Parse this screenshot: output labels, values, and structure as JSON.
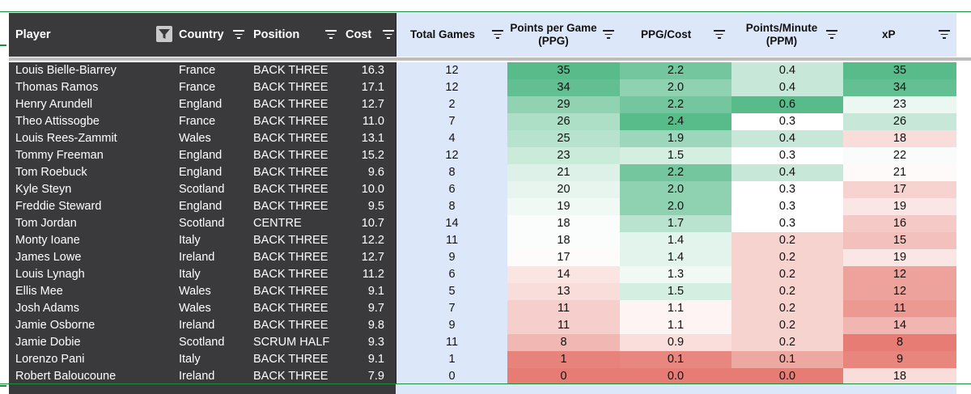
{
  "headers": {
    "player": "Player",
    "country": "Country",
    "position": "Position",
    "cost": "Cost",
    "total_games": "Total Games",
    "ppg_line1": "Points per Game",
    "ppg_line2": "(PPG)",
    "ppg_cost": "PPG/Cost",
    "ppm_line1": "Points/Minute",
    "ppm_line2": "(PPM)",
    "xp": "xP"
  },
  "icons": {
    "filter_active": "funnel-icon",
    "column_filter": "filter-lines-icon"
  },
  "colors": {
    "frozen_bg": "#3a3a3c",
    "light_bg": "#dde7fa",
    "heat_high": "#57bb8a",
    "heat_mid": "#ffffff",
    "heat_low": "#e67c73",
    "border_green": "#1e8e3e"
  },
  "rows": [
    {
      "player": "Louis Bielle-Biarrey",
      "country": "France",
      "position": "BACK THREE",
      "cost": "16.3",
      "games": "12",
      "ppg": "35",
      "ppg_cost": "2.2",
      "ppm": "0.4",
      "xp": "35"
    },
    {
      "player": "Thomas Ramos",
      "country": "France",
      "position": "BACK THREE",
      "cost": "17.1",
      "games": "12",
      "ppg": "34",
      "ppg_cost": "2.0",
      "ppm": "0.4",
      "xp": "34"
    },
    {
      "player": "Henry Arundell",
      "country": "England",
      "position": "BACK THREE",
      "cost": "12.7",
      "games": "2",
      "ppg": "29",
      "ppg_cost": "2.2",
      "ppm": "0.6",
      "xp": "23"
    },
    {
      "player": "Theo Attissogbe",
      "country": "France",
      "position": "BACK THREE",
      "cost": "11.0",
      "games": "7",
      "ppg": "26",
      "ppg_cost": "2.4",
      "ppm": "0.3",
      "xp": "26"
    },
    {
      "player": "Louis Rees-Zammit",
      "country": "Wales",
      "position": "BACK THREE",
      "cost": "13.1",
      "games": "4",
      "ppg": "25",
      "ppg_cost": "1.9",
      "ppm": "0.4",
      "xp": "18"
    },
    {
      "player": "Tommy Freeman",
      "country": "England",
      "position": "BACK THREE",
      "cost": "15.2",
      "games": "12",
      "ppg": "23",
      "ppg_cost": "1.5",
      "ppm": "0.3",
      "xp": "22"
    },
    {
      "player": "Tom Roebuck",
      "country": "England",
      "position": "BACK THREE",
      "cost": "9.6",
      "games": "8",
      "ppg": "21",
      "ppg_cost": "2.2",
      "ppm": "0.4",
      "xp": "21"
    },
    {
      "player": "Kyle Steyn",
      "country": "Scotland",
      "position": "BACK THREE",
      "cost": "10.0",
      "games": "6",
      "ppg": "20",
      "ppg_cost": "2.0",
      "ppm": "0.3",
      "xp": "17"
    },
    {
      "player": "Freddie Steward",
      "country": "England",
      "position": "BACK THREE",
      "cost": "9.5",
      "games": "8",
      "ppg": "19",
      "ppg_cost": "2.0",
      "ppm": "0.3",
      "xp": "19"
    },
    {
      "player": "Tom Jordan",
      "country": "Scotland",
      "position": "CENTRE",
      "cost": "10.7",
      "games": "14",
      "ppg": "18",
      "ppg_cost": "1.7",
      "ppm": "0.3",
      "xp": "16"
    },
    {
      "player": "Monty Ioane",
      "country": "Italy",
      "position": "BACK THREE",
      "cost": "12.2",
      "games": "11",
      "ppg": "18",
      "ppg_cost": "1.4",
      "ppm": "0.2",
      "xp": "15"
    },
    {
      "player": "James Lowe",
      "country": "Ireland",
      "position": "BACK THREE",
      "cost": "12.7",
      "games": "9",
      "ppg": "17",
      "ppg_cost": "1.4",
      "ppm": "0.2",
      "xp": "19"
    },
    {
      "player": "Louis Lynagh",
      "country": "Italy",
      "position": "BACK THREE",
      "cost": "11.2",
      "games": "6",
      "ppg": "14",
      "ppg_cost": "1.3",
      "ppm": "0.2",
      "xp": "12"
    },
    {
      "player": "Ellis Mee",
      "country": "Wales",
      "position": "BACK THREE",
      "cost": "9.1",
      "games": "5",
      "ppg": "13",
      "ppg_cost": "1.5",
      "ppm": "0.2",
      "xp": "12"
    },
    {
      "player": "Josh Adams",
      "country": "Wales",
      "position": "BACK THREE",
      "cost": "9.7",
      "games": "7",
      "ppg": "11",
      "ppg_cost": "1.1",
      "ppm": "0.2",
      "xp": "11"
    },
    {
      "player": "Jamie Osborne",
      "country": "Ireland",
      "position": "BACK THREE",
      "cost": "9.8",
      "games": "9",
      "ppg": "11",
      "ppg_cost": "1.1",
      "ppm": "0.2",
      "xp": "14"
    },
    {
      "player": "Jamie Dobie",
      "country": "Scotland",
      "position": "SCRUM HALF",
      "cost": "9.3",
      "games": "11",
      "ppg": "8",
      "ppg_cost": "0.9",
      "ppm": "0.2",
      "xp": "8"
    },
    {
      "player": "Lorenzo Pani",
      "country": "Italy",
      "position": "BACK THREE",
      "cost": "9.1",
      "games": "1",
      "ppg": "1",
      "ppg_cost": "0.1",
      "ppm": "0.1",
      "xp": "9"
    },
    {
      "player": "Robert Baloucoune",
      "country": "Ireland",
      "position": "BACK THREE",
      "cost": "7.9",
      "games": "0",
      "ppg": "0",
      "ppg_cost": "0.0",
      "ppm": "0.0",
      "xp": "18"
    }
  ]
}
